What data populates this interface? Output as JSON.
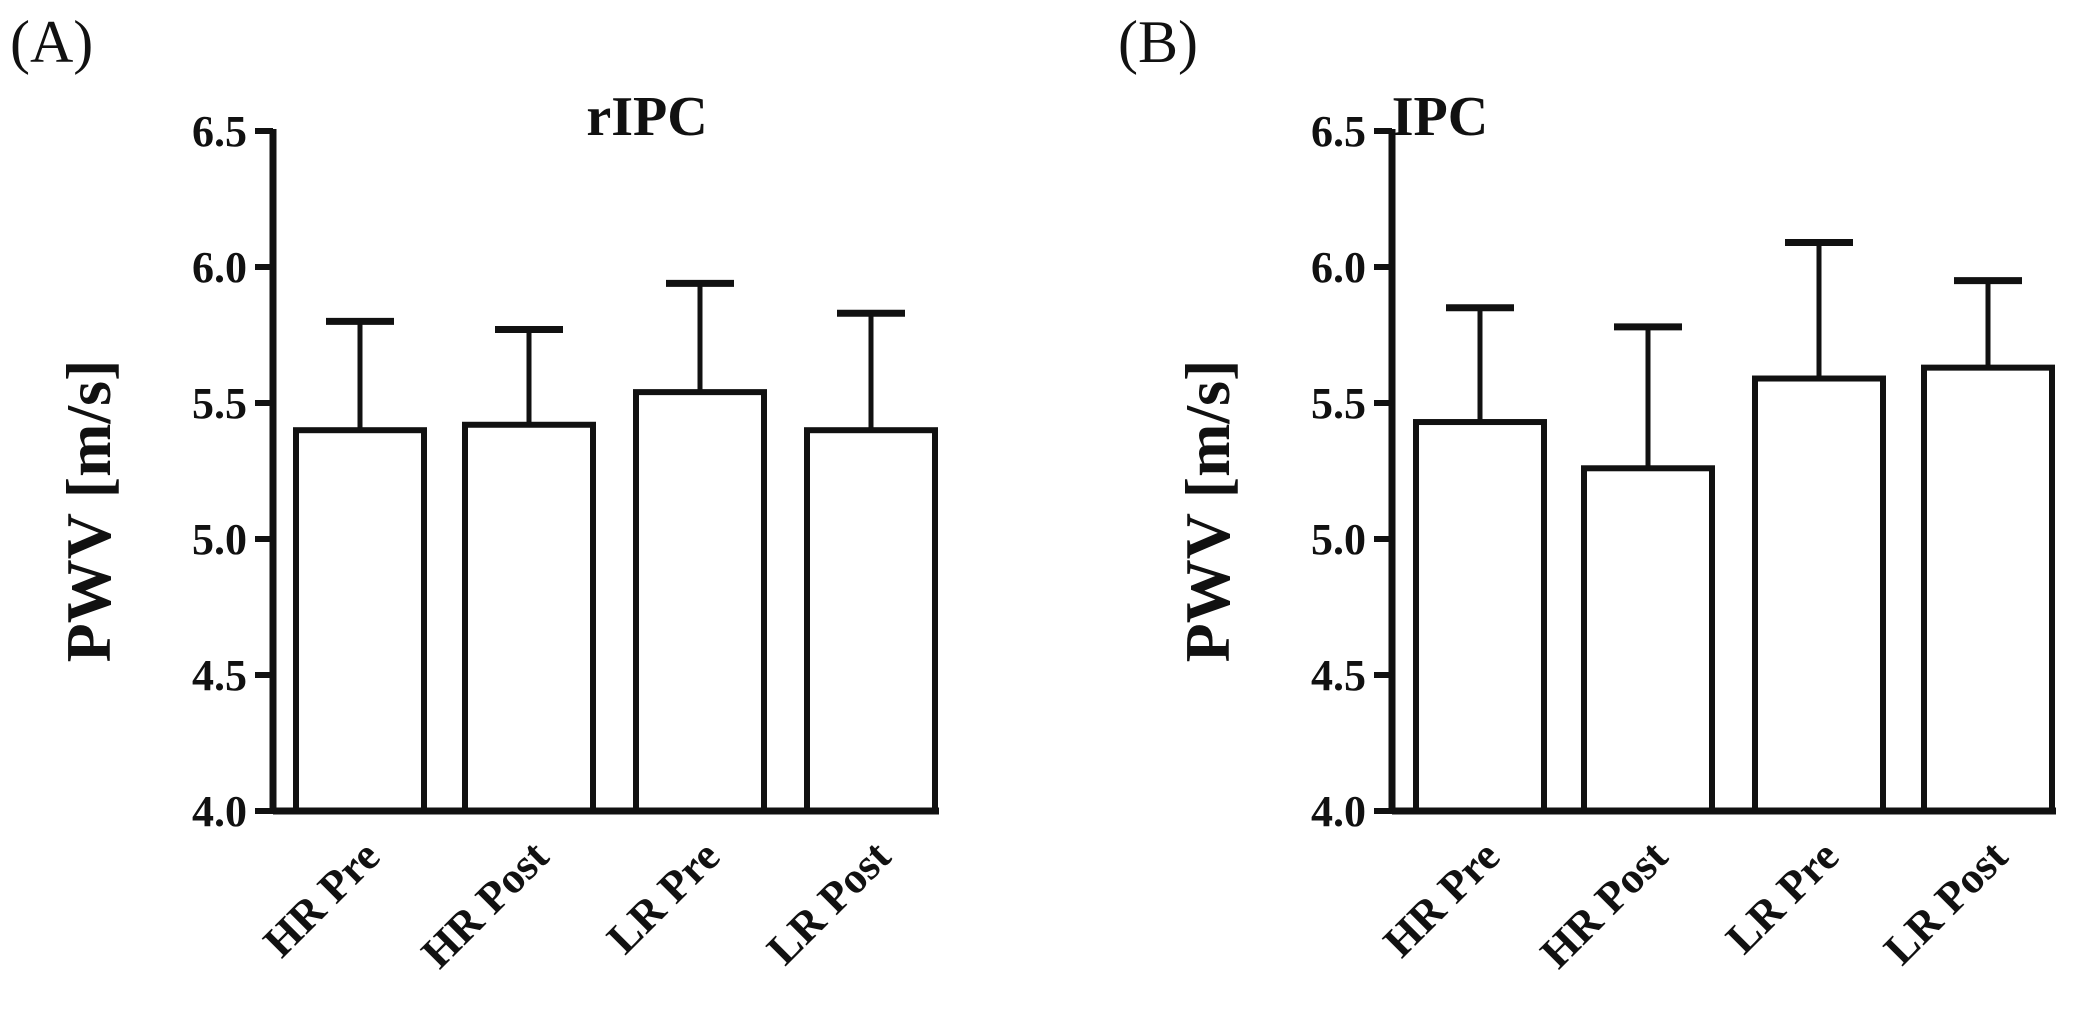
{
  "chart_data": [
    {
      "type": "bar",
      "panel_label": "(A)",
      "title": "rIPC",
      "xlabel": "",
      "ylabel": "PWV [m/s]",
      "ylim": [
        4.0,
        6.5
      ],
      "yticks": [
        "4.0",
        "4.5",
        "5.0",
        "5.5",
        "6.0",
        "6.5"
      ],
      "categories": [
        "HR Pre",
        "HR Post",
        "LR Pre",
        "LR Post"
      ],
      "values": [
        5.4,
        5.42,
        5.54,
        5.4
      ],
      "error_upper": [
        5.8,
        5.77,
        5.94,
        5.83
      ],
      "grid": false
    },
    {
      "type": "bar",
      "panel_label": "(B)",
      "title": "IPC",
      "xlabel": "",
      "ylabel": "PWV [m/s]",
      "ylim": [
        4.0,
        6.5
      ],
      "yticks": [
        "4.0",
        "4.5",
        "5.0",
        "5.5",
        "6.0",
        "6.5"
      ],
      "categories": [
        "HR Pre",
        "HR Post",
        "LR Pre",
        "LR Post"
      ],
      "values": [
        5.43,
        5.26,
        5.59,
        5.63
      ],
      "error_upper": [
        5.85,
        5.78,
        6.09,
        5.95
      ],
      "grid": false
    }
  ]
}
